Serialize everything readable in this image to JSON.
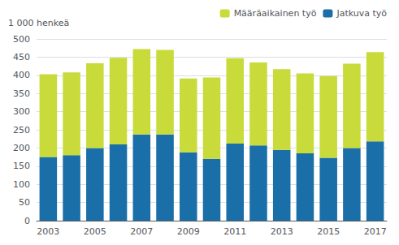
{
  "chart_data": {
    "type": "bar",
    "stacked": true,
    "ylabel": "1 000 henkeä",
    "categories": [
      "2003",
      null,
      "2005",
      null,
      "2007",
      null,
      "2009",
      null,
      "2011",
      null,
      "2013",
      null,
      "2015",
      null,
      "2017"
    ],
    "series": [
      {
        "name": "Jatkuva työ",
        "color": "#1a6fa8",
        "values": [
          175,
          180,
          200,
          210,
          237,
          237,
          188,
          170,
          212,
          207,
          195,
          185,
          173,
          200,
          218
        ]
      },
      {
        "name": "Määräaikainen työ",
        "color": "#c8db3a",
        "values": [
          228,
          228,
          233,
          238,
          235,
          233,
          203,
          224,
          235,
          228,
          222,
          220,
          225,
          232,
          246
        ]
      }
    ],
    "ylim": [
      0,
      500
    ],
    "yticks": [
      0,
      50,
      100,
      150,
      200,
      250,
      300,
      350,
      400,
      450,
      500
    ],
    "grid": true,
    "legend": "upper right"
  }
}
